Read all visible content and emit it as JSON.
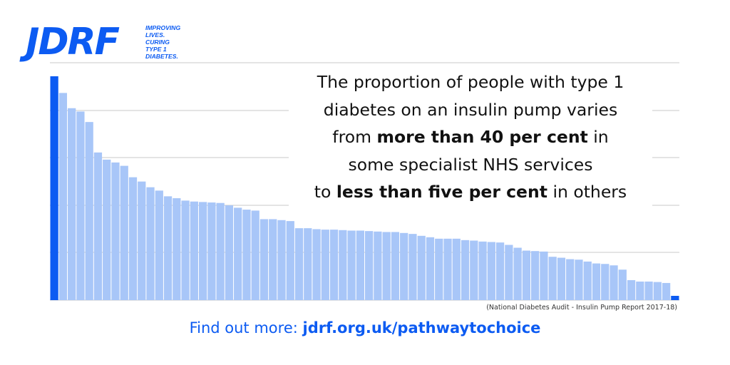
{
  "brand": {
    "wordmark": "JDRF",
    "tagline": [
      "IMPROVING",
      "LIVES.",
      "CURING",
      "TYPE 1",
      "DIABETES."
    ],
    "color": "#0c5bf2"
  },
  "headline": {
    "line1": "The proportion of people with type 1",
    "line2": "diabetes on an insulin pump varies",
    "line3_pre": "from ",
    "line3_bold": "more than 40 per cent",
    "line3_post": " in",
    "line4": "some specialist NHS services",
    "line5_pre": "to ",
    "line5_bold": "less than five per cent",
    "line5_post": " in others"
  },
  "source": "(National Diabetes Audit - Insulin Pump Report 2017-18)",
  "cta": {
    "prefix": "Find out more: ",
    "link": "jdrf.org.uk/pathwaytochoice"
  },
  "chart_data": {
    "type": "bar",
    "title": "",
    "xlabel": "",
    "ylabel": "",
    "ylim": [
      0,
      47
    ],
    "grid": true,
    "colors": {
      "bar": "#a8c6f8",
      "highlight": "#0c5bf2",
      "grid": "#c8c8c8"
    },
    "highlight_indices": [
      0,
      71
    ],
    "values": [
      47,
      43.5,
      40.3,
      39.6,
      37.4,
      31,
      29.5,
      28.9,
      28.2,
      25.8,
      24.9,
      23.7,
      23,
      21.8,
      21.4,
      20.9,
      20.7,
      20.6,
      20.5,
      20.4,
      19.9,
      19.4,
      19,
      18.8,
      17,
      17,
      16.8,
      16.6,
      15.1,
      15.1,
      14.9,
      14.8,
      14.8,
      14.7,
      14.6,
      14.6,
      14.5,
      14.4,
      14.3,
      14.3,
      14.1,
      13.9,
      13.5,
      13.2,
      12.9,
      12.9,
      12.9,
      12.6,
      12.5,
      12.3,
      12.2,
      12.1,
      11.6,
      11,
      10.4,
      10.3,
      10.2,
      9.1,
      8.9,
      8.6,
      8.5,
      8.1,
      7.7,
      7.6,
      7.3,
      6.4,
      4.2,
      3.9,
      3.9,
      3.8,
      3.6,
      0.9
    ]
  }
}
